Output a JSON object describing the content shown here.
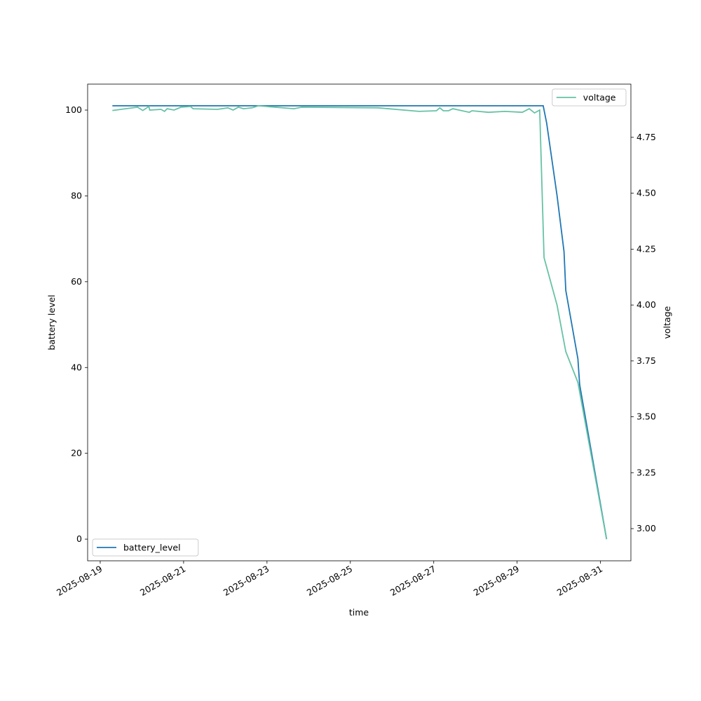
{
  "chart_data": {
    "type": "line",
    "xlabel": "time",
    "ylabel": "battery level",
    "y2label": "voltage",
    "xlim": [
      "2025-08-18 16:45",
      "2025-08-31 17:30"
    ],
    "xticks": [
      "2025-08-19",
      "2025-08-21",
      "2025-08-23",
      "2025-08-25",
      "2025-08-27",
      "2025-08-29",
      "2025-08-31"
    ],
    "ylim": [
      -5.05,
      106.05
    ],
    "yticks": [
      0,
      20,
      40,
      60,
      80,
      100
    ],
    "y2lim": [
      2.856,
      4.988
    ],
    "y2ticks": [
      {
        "value": 3.0,
        "label": "3.00"
      },
      3.25,
      {
        "value": 3.5,
        "label": "3.50"
      },
      3.75,
      {
        "value": 4.0,
        "label": "4.00"
      },
      4.25,
      {
        "value": 4.5,
        "label": "4.50"
      },
      4.75
    ],
    "legend": {
      "y": "lower left",
      "y2": "upper right"
    },
    "series": [
      {
        "name": "battery_level",
        "color": "#1f77b4",
        "axis": "y",
        "x": [
          "2025-08-19 07:00",
          "2025-08-29 15:00",
          "2025-08-29 17:00",
          "2025-08-29 23:00",
          "2025-08-30 03:00",
          "2025-08-30 04:00",
          "2025-08-30 11:00",
          "2025-08-30 12:00",
          "2025-08-31 03:30"
        ],
        "values": [
          101,
          101,
          97,
          80,
          67,
          58,
          42,
          36,
          0
        ]
      },
      {
        "name": "voltage",
        "color": "#66c2a5",
        "axis": "y2",
        "x": [
          "2025-08-19 07:00",
          "2025-08-19 21:30",
          "2025-08-20 00:30",
          "2025-08-20 04:00",
          "2025-08-20 04:30",
          "2025-08-20 11:00",
          "2025-08-20 13:00",
          "2025-08-20 14:30",
          "2025-08-20 18:30",
          "2025-08-20 22:30",
          "2025-08-21 04:00",
          "2025-08-21 05:30",
          "2025-08-21 19:30",
          "2025-08-22 01:30",
          "2025-08-22 04:30",
          "2025-08-22 07:30",
          "2025-08-22 10:30",
          "2025-08-22 15:30",
          "2025-08-22 19:00",
          "2025-08-23 15:30",
          "2025-08-23 20:00",
          "2025-08-25 16:00",
          "2025-08-26 15:30",
          "2025-08-27 01:30",
          "2025-08-27 03:30",
          "2025-08-27 05:30",
          "2025-08-27 08:30",
          "2025-08-27 11:00",
          "2025-08-27 20:30",
          "2025-08-27 22:00",
          "2025-08-28 07:30",
          "2025-08-28 17:00",
          "2025-08-29 03:00",
          "2025-08-29 07:00",
          "2025-08-29 10:00",
          "2025-08-29 13:00",
          "2025-08-29 15:30",
          "2025-08-29 23:00",
          "2025-08-30 04:00",
          "2025-08-30 11:00",
          "2025-08-31 03:30"
        ],
        "values": [
          4.87,
          4.885,
          4.87,
          4.888,
          4.872,
          4.875,
          4.866,
          4.878,
          4.872,
          4.885,
          4.888,
          4.878,
          4.875,
          4.882,
          4.872,
          4.885,
          4.878,
          4.882,
          4.891,
          4.878,
          4.885,
          4.882,
          4.866,
          4.869,
          4.882,
          4.869,
          4.869,
          4.878,
          4.862,
          4.869,
          4.862,
          4.866,
          4.862,
          4.878,
          4.859,
          4.872,
          4.212,
          3.999,
          3.792,
          3.654,
          2.953
        ]
      }
    ]
  }
}
